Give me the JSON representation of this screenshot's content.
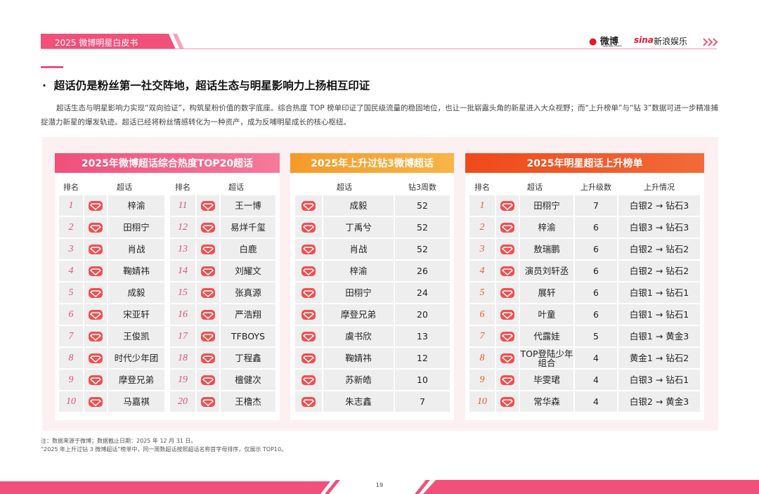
{
  "header": {
    "title": "2025 微博明星白皮书",
    "logo_weibo": "微博",
    "logo_weibo_url": "weibo.com",
    "logo_sina": "sina",
    "logo_sina_ent": "新浪娱乐"
  },
  "heading": "超话仍是粉丝第一社交阵地，超话生态与明星影响力上扬相互印证",
  "paragraph": "超话生态与明星影响力实现“双向验证”，构筑星粉价值的数字底座。综合热度 TOP 榜单印证了国民级流量的稳固地位，也让一批崭露头角的新星进入大众视野；而“上升榜单”与“钻 3”数据可进一步精准捕捉潜力新星的爆发轨迹。超话已经将粉丝情感转化为一种资产，成为反哺明星成长的核心枢纽。",
  "tables": [
    {
      "title": "2025年微博超话综合热度TOP20超话",
      "columns": [
        "排名",
        "超话",
        "排名",
        "超话"
      ],
      "rows": [
        [
          1,
          "梓渝",
          11,
          "王一博"
        ],
        [
          2,
          "田栩宁",
          12,
          "易烊千玺"
        ],
        [
          3,
          "肖战",
          13,
          "白鹿"
        ],
        [
          4,
          "鞠婧祎",
          14,
          "刘耀文"
        ],
        [
          5,
          "成毅",
          15,
          "张真源"
        ],
        [
          6,
          "宋亚轩",
          16,
          "严浩翔"
        ],
        [
          7,
          "王俊凯",
          17,
          "TFBOYS"
        ],
        [
          8,
          "时代少年团",
          18,
          "丁程鑫"
        ],
        [
          9,
          "摩登兄弟",
          19,
          "檀健次"
        ],
        [
          10,
          "马嘉祺",
          20,
          "王橹杰"
        ]
      ]
    },
    {
      "title": "2025年上升过钻3微博超话",
      "columns": [
        "超话",
        "钻3周数"
      ],
      "rows": [
        [
          "成毅",
          52
        ],
        [
          "丁禹兮",
          52
        ],
        [
          "肖战",
          52
        ],
        [
          "梓渝",
          26
        ],
        [
          "田栩宁",
          24
        ],
        [
          "摩登兄弟",
          20
        ],
        [
          "虞书欣",
          13
        ],
        [
          "鞠婧祎",
          12
        ],
        [
          "苏新皓",
          10
        ],
        [
          "朱志鑫",
          7
        ]
      ]
    },
    {
      "title": "2025年明星超话上升榜单",
      "columns": [
        "排名",
        "超话",
        "上升级数",
        "上升情况"
      ],
      "rows": [
        [
          1,
          "田栩宁",
          7,
          "白银2 → 钻石3"
        ],
        [
          2,
          "梓渝",
          6,
          "白银3 → 钻石3"
        ],
        [
          3,
          "敖瑞鹏",
          6,
          "白银2 → 钻石2"
        ],
        [
          4,
          "演员刘轩丞",
          6,
          "白银2 → 钻石2"
        ],
        [
          5,
          "展轩",
          6,
          "白银1 → 钻石1"
        ],
        [
          6,
          "叶童",
          6,
          "白银1 → 钻石1"
        ],
        [
          7,
          "代露娃",
          5,
          "白银1 → 黄金3"
        ],
        [
          8,
          "TOP登陆少年组合",
          4,
          "黄金1 → 钻石2"
        ],
        [
          9,
          "毕雯珺",
          4,
          "白银3 → 钻石1"
        ],
        [
          10,
          "常华森",
          4,
          "白银2 → 黄金3"
        ]
      ]
    }
  ],
  "notes": [
    "注：数据来源于微博；数据截止日期：2025 年 12 月 31 日。",
    "“2025 年上升过钻 3 微博超话”榜单中，同一周数超话按照超话名称首字母排序，仅展示 TOP10。"
  ],
  "page_number": "19"
}
